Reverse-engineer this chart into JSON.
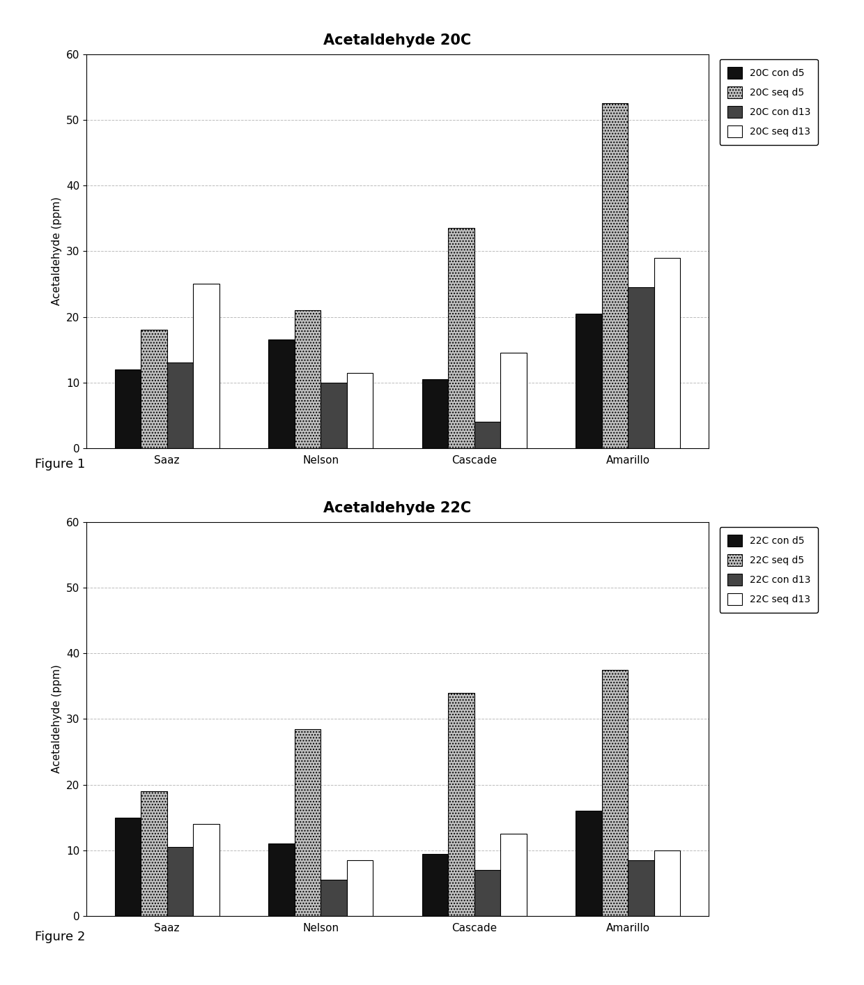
{
  "fig1": {
    "title": "Acetaldehyde 20C",
    "categories": [
      "Saaz",
      "Nelson",
      "Cascade",
      "Amarillo"
    ],
    "series": [
      {
        "label": "20C con d5",
        "color": "#111111",
        "hatch": "",
        "values": [
          12,
          16.5,
          10.5,
          20.5
        ]
      },
      {
        "label": "20C seq d5",
        "color": "#c0c0c0",
        "hatch": "....",
        "values": [
          18,
          21,
          33.5,
          52.5
        ]
      },
      {
        "label": "20C con d13",
        "color": "#444444",
        "hatch": "",
        "values": [
          13,
          10,
          4,
          24.5
        ]
      },
      {
        "label": "20C seq d13",
        "color": "#ffffff",
        "hatch": "",
        "values": [
          25,
          11.5,
          14.5,
          29
        ]
      }
    ],
    "ylabel": "Acetaldehyde (ppm)",
    "ylim": [
      0,
      60
    ],
    "yticks": [
      0,
      10,
      20,
      30,
      40,
      50,
      60
    ],
    "figure_label": "Figure 1"
  },
  "fig2": {
    "title": "Acetaldehyde 22C",
    "categories": [
      "Saaz",
      "Nelson",
      "Cascade",
      "Amarillo"
    ],
    "series": [
      {
        "label": "22C con d5",
        "color": "#111111",
        "hatch": "",
        "values": [
          15,
          11,
          9.5,
          16
        ]
      },
      {
        "label": "22C seq d5",
        "color": "#c0c0c0",
        "hatch": "....",
        "values": [
          19,
          28.5,
          34,
          37.5
        ]
      },
      {
        "label": "22C con d13",
        "color": "#444444",
        "hatch": "",
        "values": [
          10.5,
          5.5,
          7,
          8.5
        ]
      },
      {
        "label": "22C seq d13",
        "color": "#ffffff",
        "hatch": "",
        "values": [
          14,
          8.5,
          12.5,
          10
        ]
      }
    ],
    "ylabel": "Acetaldehyde (ppm)",
    "ylim": [
      0,
      60
    ],
    "yticks": [
      0,
      10,
      20,
      30,
      40,
      50,
      60
    ],
    "figure_label": "Figure 2"
  },
  "bar_width": 0.17,
  "background_color": "#ffffff",
  "plot_bg_color": "#ffffff",
  "edge_color": "#000000",
  "title_fontsize": 15,
  "label_fontsize": 11,
  "tick_fontsize": 11,
  "legend_fontsize": 10,
  "figure_label_fontsize": 13,
  "grid_color": "#bbbbbb",
  "grid_linestyle": "--",
  "grid_linewidth": 0.7
}
